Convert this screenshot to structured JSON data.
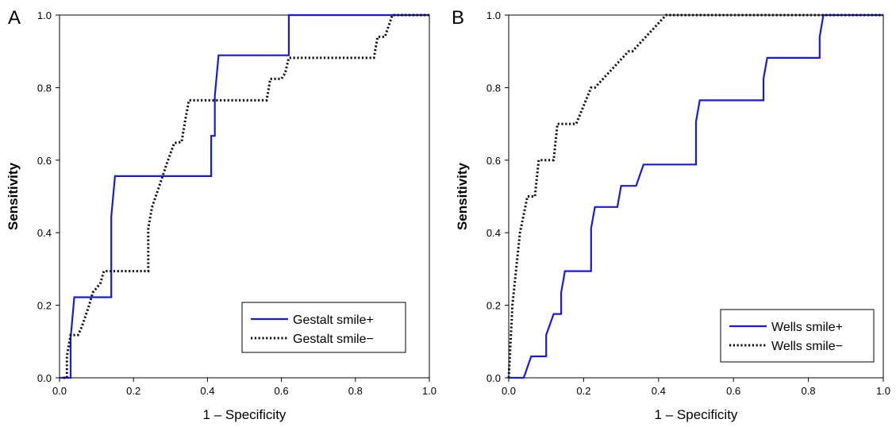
{
  "chart_data": [
    {
      "type": "line",
      "panel_label": "A",
      "xlabel": "1 – Specificity",
      "ylabel": "Sensitivity",
      "xlim": [
        0,
        1
      ],
      "ylim": [
        0,
        1
      ],
      "xticks": [
        "0.0",
        "0.2",
        "0.4",
        "0.6",
        "0.8",
        "1.0"
      ],
      "yticks": [
        "0.0",
        "0.2",
        "0.4",
        "0.6",
        "0.8",
        "1.0"
      ],
      "grid": false,
      "legend_position": "bottom-right",
      "series": [
        {
          "name": "Gestalt smile+",
          "color": "#1a1adc",
          "style": "solid",
          "x": [
            0,
            0.03,
            0.03,
            0.04,
            0.14,
            0.14,
            0.15,
            0.41,
            0.41,
            0.42,
            0.42,
            0.43,
            0.62,
            0.62,
            1.0
          ],
          "y": [
            0,
            0,
            0.11,
            0.222,
            0.222,
            0.444,
            0.556,
            0.556,
            0.667,
            0.667,
            0.778,
            0.889,
            0.889,
            1.0,
            1.0
          ]
        },
        {
          "name": "Gestalt smile−",
          "color": "#111111",
          "style": "dotted",
          "x": [
            0.01,
            0.02,
            0.02,
            0.03,
            0.05,
            0.06,
            0.08,
            0.09,
            0.11,
            0.12,
            0.24,
            0.24,
            0.25,
            0.27,
            0.29,
            0.31,
            0.33,
            0.34,
            0.35,
            0.56,
            0.57,
            0.6,
            0.61,
            0.62,
            0.85,
            0.86,
            0.88,
            0.89,
            0.9,
            0.91,
            1.0
          ],
          "y": [
            0,
            0,
            0.06,
            0.118,
            0.118,
            0.14,
            0.2,
            0.235,
            0.26,
            0.294,
            0.294,
            0.412,
            0.47,
            0.529,
            0.59,
            0.647,
            0.65,
            0.71,
            0.765,
            0.765,
            0.824,
            0.824,
            0.84,
            0.882,
            0.882,
            0.94,
            0.94,
            0.97,
            1.0,
            1.0,
            1.0
          ]
        }
      ]
    },
    {
      "type": "line",
      "panel_label": "B",
      "xlabel": "1 – Specificity",
      "ylabel": "Sensitivity",
      "xlim": [
        0,
        1
      ],
      "ylim": [
        0,
        1
      ],
      "xticks": [
        "0.0",
        "0.2",
        "0.4",
        "0.6",
        "0.8",
        "1.0"
      ],
      "yticks": [
        "0.0",
        "0.2",
        "0.4",
        "0.6",
        "0.8",
        "1.0"
      ],
      "grid": false,
      "legend_position": "bottom-right",
      "series": [
        {
          "name": "Wells smile+",
          "color": "#1a1adc",
          "style": "solid",
          "x": [
            0,
            0.04,
            0.06,
            0.1,
            0.1,
            0.12,
            0.14,
            0.14,
            0.15,
            0.22,
            0.22,
            0.23,
            0.26,
            0.29,
            0.3,
            0.34,
            0.36,
            0.5,
            0.5,
            0.51,
            0.68,
            0.68,
            0.69,
            0.83,
            0.83,
            0.84,
            1.0
          ],
          "y": [
            0,
            0,
            0.059,
            0.059,
            0.118,
            0.176,
            0.176,
            0.235,
            0.294,
            0.294,
            0.412,
            0.471,
            0.471,
            0.471,
            0.529,
            0.529,
            0.588,
            0.588,
            0.706,
            0.765,
            0.765,
            0.824,
            0.882,
            0.882,
            0.94,
            1.0,
            1.0
          ]
        },
        {
          "name": "Wells smile−",
          "color": "#111111",
          "style": "dotted",
          "x": [
            0,
            0.01,
            0.02,
            0.03,
            0.04,
            0.05,
            0.07,
            0.08,
            0.09,
            0.12,
            0.13,
            0.14,
            0.18,
            0.22,
            0.23,
            0.32,
            0.33,
            0.42,
            0.43,
            1.0
          ],
          "y": [
            0,
            0.2,
            0.3,
            0.4,
            0.45,
            0.5,
            0.5,
            0.6,
            0.6,
            0.6,
            0.7,
            0.7,
            0.7,
            0.8,
            0.8,
            0.9,
            0.9,
            1.0,
            1.0,
            1.0
          ]
        }
      ]
    }
  ]
}
